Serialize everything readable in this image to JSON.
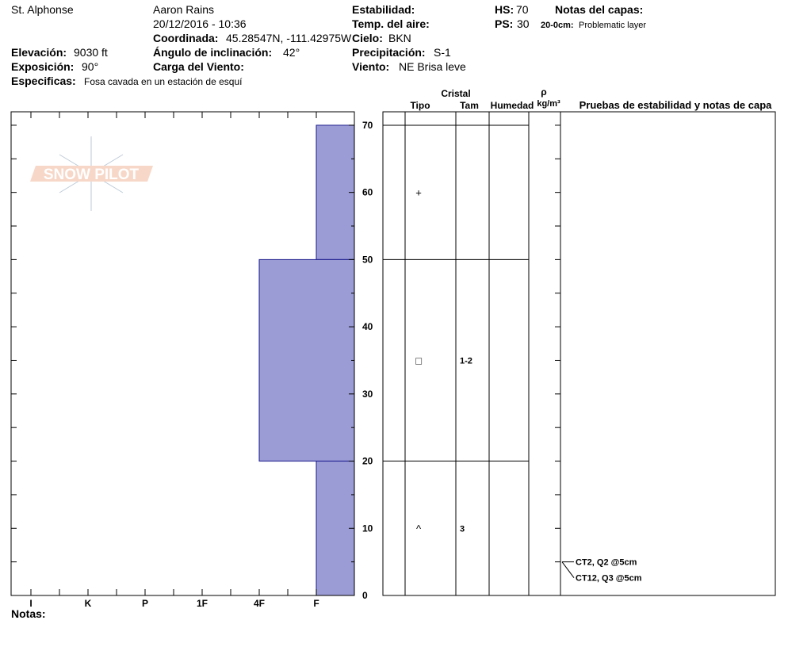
{
  "header": {
    "location": "St. Alphonse",
    "observer": "Aaron Rains",
    "datetime": "20/12/2016 - 10:36",
    "coord_label": "Coordinada:",
    "coord": "45.28547N, -111.42975W",
    "elev_label": "Elevación:",
    "elev": "9030 ft",
    "aspect_label": "Exposición:",
    "aspect": "90°",
    "spec_label": "Especificas:",
    "spec": "Fosa cavada en un estación de esquí",
    "slope_label": "Ángulo de inclinación:",
    "slope": "42°",
    "wind_load_label": "Carga del Viento:",
    "stability_label": "Estabilidad:",
    "air_temp_label": "Temp. del aire:",
    "sky_label": "Cielo:",
    "sky": "BKN",
    "precip_label": "Precipitación:",
    "precip": "S-1",
    "wind_label": "Viento:",
    "wind": "NE Brisa leve",
    "hs_label": "HS:",
    "hs": "70",
    "ps_label": "PS:",
    "ps": "30",
    "notes_label": "Notas del capas:",
    "notes_depth": "20-0cm:",
    "notes_text": "Problematic layer",
    "footer_notes": "Notas:",
    "logo": "SNOW PILOT"
  },
  "chart_data": {
    "type": "snow-profile",
    "color": "#9b9bd6",
    "hardness_categories": [
      "I",
      "K",
      "P",
      "1F",
      "4F",
      "F"
    ],
    "ylim": [
      0,
      72
    ],
    "yticks": [
      0,
      10,
      20,
      30,
      40,
      50,
      60,
      70
    ],
    "columns": {
      "crystal": "Cristal",
      "type": "Tipo",
      "size": "Tam",
      "moisture": "Humedad",
      "rho": "ρ",
      "density_unit": "kg/m³",
      "tests": "Pruebas de estabilidad y notas de capa"
    },
    "layers": [
      {
        "top": 70,
        "bottom": 50,
        "hardness": "F",
        "grain": "+"
      },
      {
        "top": 50,
        "bottom": 20,
        "hardness": "4F",
        "grain": "□",
        "size": "1-2"
      },
      {
        "top": 20,
        "bottom": 0,
        "hardness": "F",
        "grain": "^",
        "size": "3"
      }
    ],
    "tests": [
      {
        "depth": 5,
        "label": "CT2, Q2 @5cm"
      },
      {
        "depth": 5,
        "label": "CT12, Q3 @5cm"
      }
    ]
  }
}
